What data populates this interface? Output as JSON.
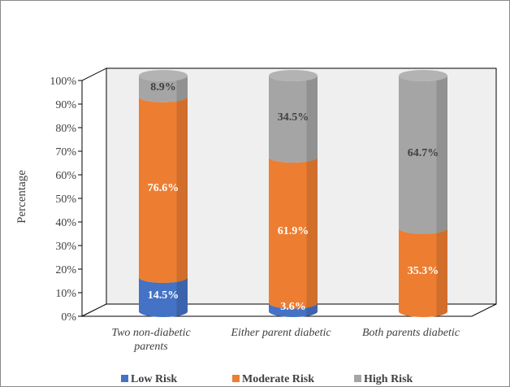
{
  "chart_data": {
    "type": "bar",
    "stacked": true,
    "style": "3d-cylinder",
    "categories": [
      [
        "Two non-diabetic",
        "parents"
      ],
      [
        "Either parent diabetic"
      ],
      [
        "Both parents diabetic"
      ]
    ],
    "series": [
      {
        "name": "Low Risk",
        "values": [
          14.5,
          3.6,
          0
        ],
        "color": "#4472C4",
        "labels": [
          "14.5%",
          "3.6%",
          ""
        ]
      },
      {
        "name": "Moderate Risk",
        "values": [
          76.6,
          61.9,
          35.3
        ],
        "color": "#ED7D31",
        "labels": [
          "76.6%",
          "61.9%",
          "35.3%"
        ]
      },
      {
        "name": "High Risk",
        "values": [
          8.9,
          34.5,
          64.7
        ],
        "color": "#A5A5A5",
        "labels": [
          "8.9%",
          "34.5%",
          "64.7%"
        ]
      }
    ],
    "ylabel": "Percentage",
    "ylim": [
      0,
      100
    ],
    "yticks": [
      "0%",
      "10%",
      "20%",
      "30%",
      "40%",
      "50%",
      "60%",
      "70%",
      "80%",
      "90%",
      "100%"
    ],
    "grid": false,
    "legend": "bottom"
  }
}
